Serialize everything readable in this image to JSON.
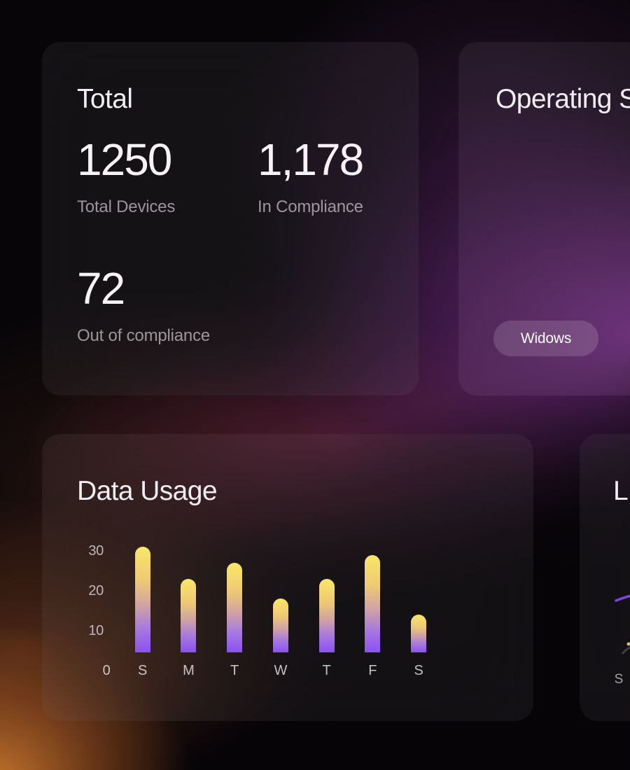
{
  "cards": {
    "total": {
      "title": "Total",
      "stats": [
        {
          "value": "1250",
          "label": "Total Devices"
        },
        {
          "value": "1,178",
          "label": "In Compliance"
        },
        {
          "value": "72",
          "label": "Out of compliance"
        }
      ]
    },
    "operating_systems": {
      "title": "Operating S",
      "badges": [
        {
          "label": "Widows"
        }
      ]
    },
    "data_usage": {
      "title": "Data Usage"
    },
    "line": {
      "title": "L",
      "x_label": "S"
    }
  },
  "chart_data": [
    {
      "type": "bar",
      "title": "Data Usage",
      "categories": [
        "S",
        "M",
        "T",
        "W",
        "T",
        "F",
        "S"
      ],
      "values": [
        31,
        23,
        27,
        18,
        23,
        29,
        14
      ],
      "yticks": [
        0,
        10,
        20,
        30
      ],
      "ylim": [
        0,
        32
      ],
      "grid": false,
      "legend": false,
      "bar_gradient": [
        "#f8e766",
        "#8a52f0"
      ]
    },
    {
      "type": "line",
      "title": "L",
      "categories": [
        "S"
      ],
      "series": [
        {
          "name": "purple-trend",
          "color": "#7b45e8"
        },
        {
          "name": "yellow-point",
          "color": "#ecd25e"
        }
      ],
      "note": "chart clipped at right edge of screenshot"
    }
  ],
  "colors": {
    "accent_purple": "#7b45e8",
    "bar_top_yellow": "#f8e766",
    "bar_bottom_violet": "#8a52f0",
    "glow_purple": "#7c308c",
    "glow_maroon": "#983458",
    "glow_orange": "#ec8c34",
    "pill_background": "rgba(255,255,255,0.14)"
  }
}
